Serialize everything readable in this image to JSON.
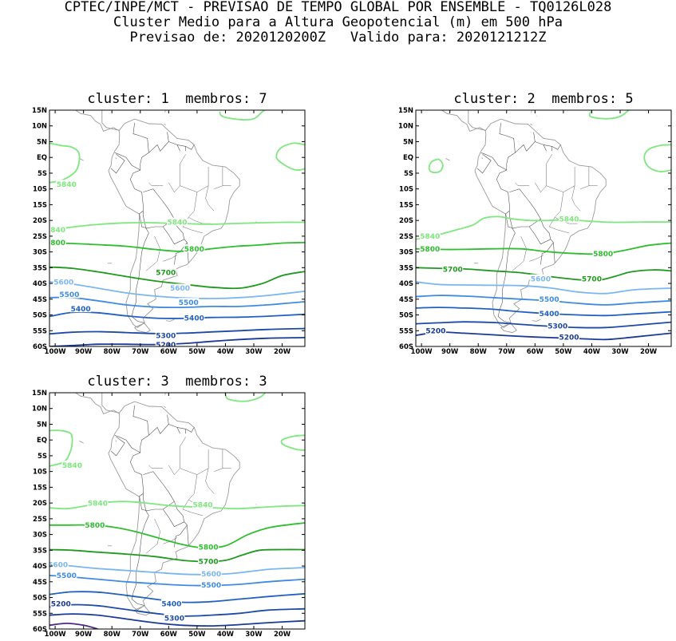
{
  "header": {
    "line1": "CPTEC/INPE/MCT - PREVISAO DE TEMPO GLOBAL POR ENSEMBLE - TQ0126L028",
    "line2": "Cluster Medio para a Altura Geopotencial (m) em 500 hPa",
    "line3": "Previsao de: 2020120200Z   Valido para: 2020121212Z"
  },
  "axes": {
    "lat_labels": [
      "15N",
      "10N",
      "5N",
      "EQ",
      "5S",
      "10S",
      "15S",
      "20S",
      "25S",
      "30S",
      "35S",
      "40S",
      "45S",
      "50S",
      "55S",
      "60S"
    ],
    "lon_labels": [
      "100W",
      "90W",
      "80W",
      "70W",
      "60W",
      "50W",
      "40W",
      "30W",
      "20W"
    ]
  },
  "colors": {
    "5840": "#7de87d",
    "5800": "#2ebe2e",
    "5700": "#1f9a1f",
    "5600": "#7ab6f0",
    "5500": "#3f8be0",
    "5400": "#2060c0",
    "5300": "#1c4aa8",
    "5200": "#1a3a96",
    "5100": "#4b2a8c",
    "coast": "#9a9a9a",
    "border": "#555555"
  },
  "panels": [
    {
      "title": "cluster: 1  membros: 7",
      "contour_labels": [
        {
          "text": "5840",
          "lev": "5840",
          "lon": -96,
          "lat": -8.5
        },
        {
          "text": "840",
          "lev": "5840",
          "lon": -99,
          "lat": -23
        },
        {
          "text": "5840",
          "lev": "5840",
          "lon": -57,
          "lat": -20.5
        },
        {
          "text": "800",
          "lev": "5800",
          "lon": -99,
          "lat": -27
        },
        {
          "text": "5800",
          "lev": "5800",
          "lon": -51,
          "lat": -29
        },
        {
          "text": "5700",
          "lev": "5700",
          "lon": -61,
          "lat": -36.5
        },
        {
          "text": "5600",
          "lev": "5600",
          "lon": -97,
          "lat": -39.5
        },
        {
          "text": "5600",
          "lev": "5600",
          "lon": -56,
          "lat": -41.5
        },
        {
          "text": "5500",
          "lev": "5500",
          "lon": -95,
          "lat": -43.5
        },
        {
          "text": "5500",
          "lev": "5500",
          "lon": -53,
          "lat": -46
        },
        {
          "text": "5400",
          "lev": "5400",
          "lon": -91,
          "lat": -48
        },
        {
          "text": "5400",
          "lev": "5400",
          "lon": -51,
          "lat": -51
        },
        {
          "text": "5300",
          "lev": "5300",
          "lon": -61,
          "lat": -56.5
        },
        {
          "text": "5200",
          "lev": "5200",
          "lon": -61,
          "lat": -59.5
        }
      ]
    },
    {
      "title": "cluster: 2  membros: 5",
      "contour_labels": [
        {
          "text": "5840",
          "lev": "5840",
          "lon": -48,
          "lat": -19.5
        },
        {
          "text": "5840",
          "lev": "5840",
          "lon": -97,
          "lat": -25
        },
        {
          "text": "5800",
          "lev": "5800",
          "lon": -97,
          "lat": -29
        },
        {
          "text": "5800",
          "lev": "5800",
          "lon": -36,
          "lat": -30.5
        },
        {
          "text": "5700",
          "lev": "5700",
          "lon": -89,
          "lat": -35.5
        },
        {
          "text": "5700",
          "lev": "5700",
          "lon": -40,
          "lat": -38.5
        },
        {
          "text": "5600",
          "lev": "5600",
          "lon": -58,
          "lat": -38.5
        },
        {
          "text": "5500",
          "lev": "5500",
          "lon": -55,
          "lat": -45
        },
        {
          "text": "5400",
          "lev": "5400",
          "lon": -55,
          "lat": -49.5
        },
        {
          "text": "5300",
          "lev": "5300",
          "lon": -52,
          "lat": -53.5
        },
        {
          "text": "5200",
          "lev": "5200",
          "lon": -95,
          "lat": -55
        },
        {
          "text": "5200",
          "lev": "5200",
          "lon": -48,
          "lat": -57
        }
      ]
    },
    {
      "title": "cluster: 3  membros: 3",
      "contour_labels": [
        {
          "text": "5840",
          "lev": "5840",
          "lon": -94,
          "lat": -8
        },
        {
          "text": "5840",
          "lev": "5840",
          "lon": -85,
          "lat": -20
        },
        {
          "text": "5840",
          "lev": "5840",
          "lon": -48,
          "lat": -20.5
        },
        {
          "text": "5800",
          "lev": "5800",
          "lon": -86,
          "lat": -27
        },
        {
          "text": "5800",
          "lev": "5800",
          "lon": -46,
          "lat": -34
        },
        {
          "text": "5700",
          "lev": "5700",
          "lon": -46,
          "lat": -38.5
        },
        {
          "text": "5600",
          "lev": "5600",
          "lon": -99,
          "lat": -39.5
        },
        {
          "text": "5600",
          "lev": "5600",
          "lon": -45,
          "lat": -42.5
        },
        {
          "text": "5500",
          "lev": "5500",
          "lon": -96,
          "lat": -43
        },
        {
          "text": "5500",
          "lev": "5500",
          "lon": -45,
          "lat": -46
        },
        {
          "text": "5400",
          "lev": "5400",
          "lon": -59,
          "lat": -52
        },
        {
          "text": "5300",
          "lev": "5300",
          "lon": -58,
          "lat": -56.5
        },
        {
          "text": "5200",
          "lev": "5200",
          "lon": -98,
          "lat": -52
        }
      ]
    }
  ]
}
